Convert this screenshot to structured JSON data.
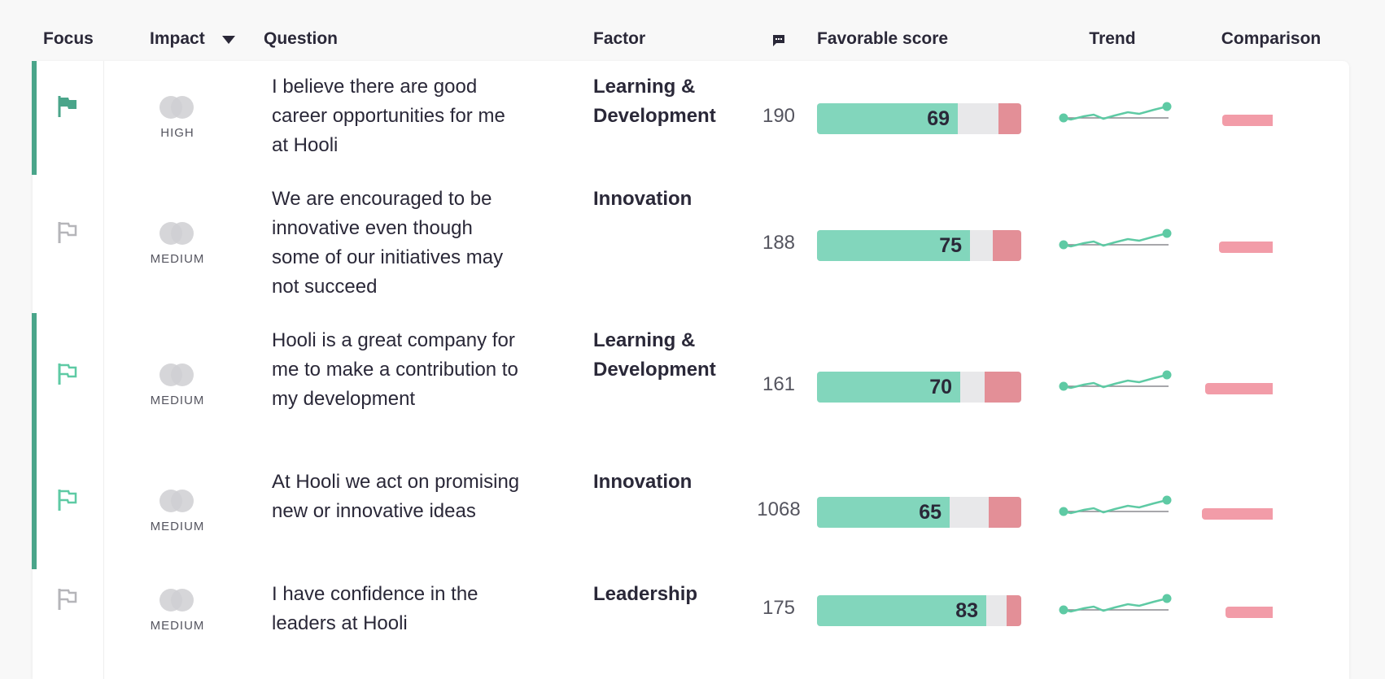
{
  "header": {
    "focus": "Focus",
    "impact": "Impact",
    "question": "Question",
    "factor": "Factor",
    "comments_icon": "comment-icon",
    "favorable_score": "Favorable score",
    "trend": "Trend",
    "comparison": "Comparison"
  },
  "colors": {
    "favorable": "#82d6bc",
    "neutral": "#e8e8ea",
    "unfavorable": "#e38f97",
    "focus_accent": "#4aa58a",
    "comparison": "#f29ca8"
  },
  "rows": [
    {
      "focused": true,
      "flag_style": "filled",
      "impact": "HIGH",
      "question": "I believe there are good career opportunities for me at Hooli",
      "factor": "Learning & Development",
      "comments": "190",
      "favorable": 69,
      "unfavorable": 11
    },
    {
      "focused": false,
      "flag_style": "outline-gray",
      "impact": "MEDIUM",
      "question": "We are encouraged to be innovative even though some of our initiatives may not succeed",
      "factor": "Innovation",
      "comments": "188",
      "favorable": 75,
      "unfavorable": 14
    },
    {
      "focused": true,
      "flag_style": "outline-green",
      "impact": "MEDIUM",
      "question": "Hooli is a great company for me to make a contribution to my development",
      "factor": "Learning & Development",
      "comments": "161",
      "favorable": 70,
      "unfavorable": 18
    },
    {
      "focused": true,
      "flag_style": "outline-green",
      "impact": "MEDIUM",
      "question": "At Hooli we act on promising new or innovative ideas",
      "factor": "Innovation",
      "comments": "1068",
      "favorable": 65,
      "unfavorable": 16
    },
    {
      "focused": false,
      "flag_style": "outline-gray",
      "impact": "MEDIUM",
      "question": "I have confidence in the leaders at Hooli",
      "factor": "Leadership",
      "comments": "175",
      "favorable": 83,
      "unfavorable": 7
    }
  ]
}
